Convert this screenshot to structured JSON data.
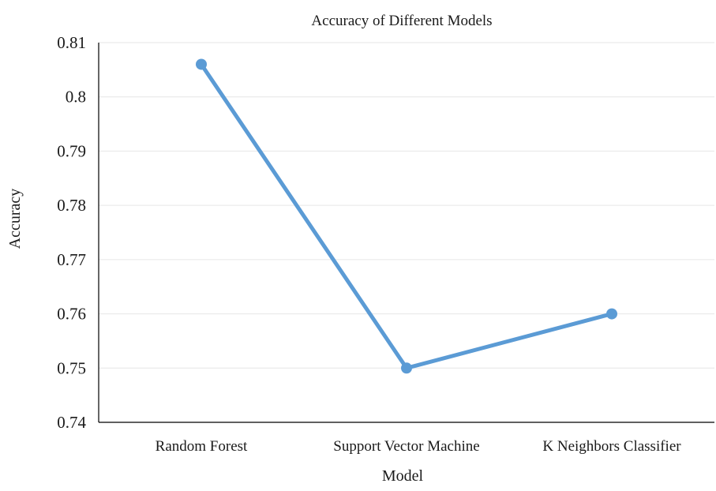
{
  "chart_data": {
    "type": "line",
    "title": "Accuracy of Different Models",
    "xlabel": "Model",
    "ylabel": "Accuracy",
    "categories": [
      "Random Forest",
      "Support Vector Machine",
      "K Neighbors Classifier"
    ],
    "series": [
      {
        "values": [
          0.806,
          0.75,
          0.76
        ]
      }
    ],
    "ylim": [
      0.74,
      0.81
    ],
    "yticks": [
      "0.74",
      "0.75",
      "0.76",
      "0.77",
      "0.78",
      "0.79",
      "0.8",
      "0.81"
    ],
    "grid": true,
    "line_color": "#5B9BD5"
  }
}
